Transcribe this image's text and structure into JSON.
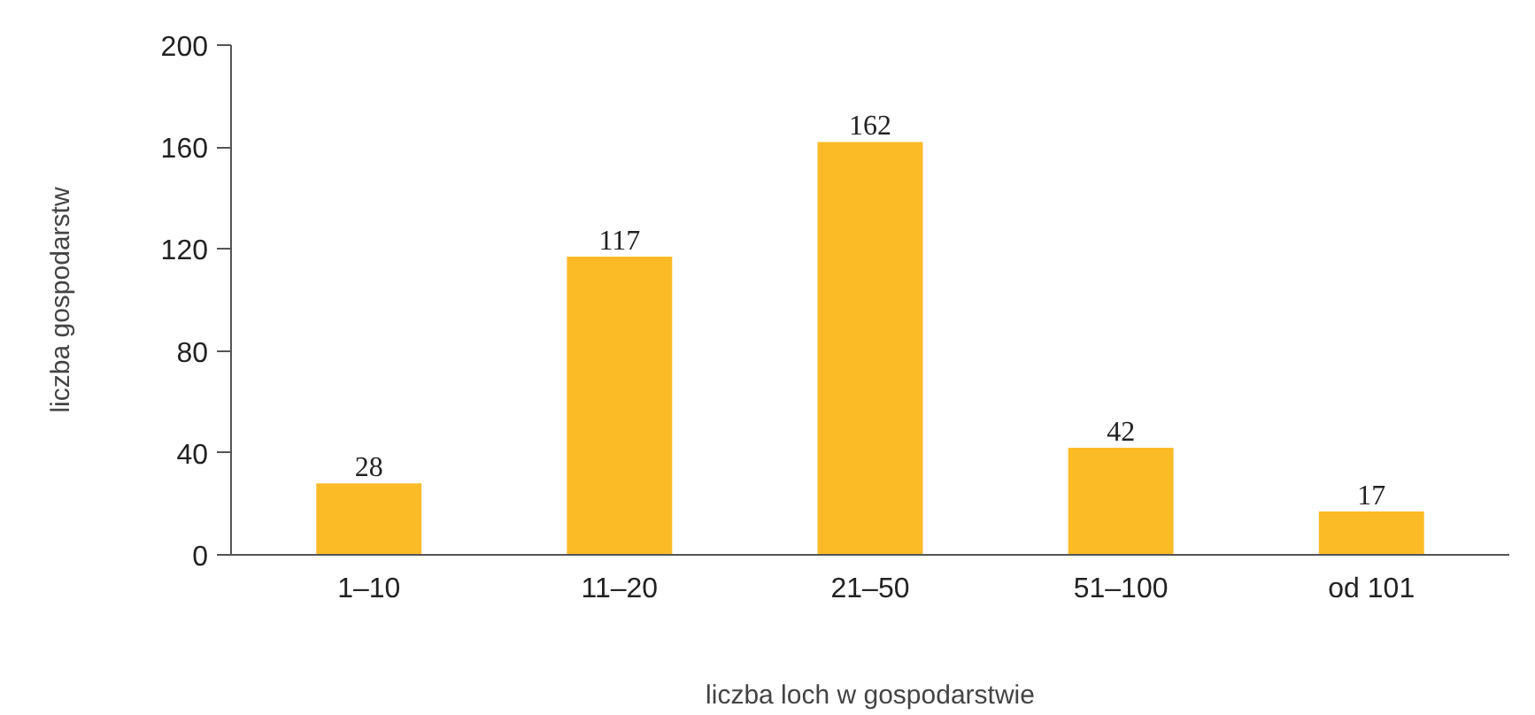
{
  "chart_data": {
    "type": "bar",
    "xlabel": "liczba loch w gospodarstwie",
    "ylabel": "liczba gospodarstw",
    "categories": [
      "1–10",
      "11–20",
      "21–50",
      "51–100",
      "od 101"
    ],
    "values": [
      28,
      117,
      162,
      42,
      17
    ],
    "color": "#fbbb27",
    "ylim": [
      0,
      200
    ],
    "yticks": [
      0,
      40,
      80,
      120,
      160,
      200
    ],
    "grid": false,
    "data_labels": true
  }
}
